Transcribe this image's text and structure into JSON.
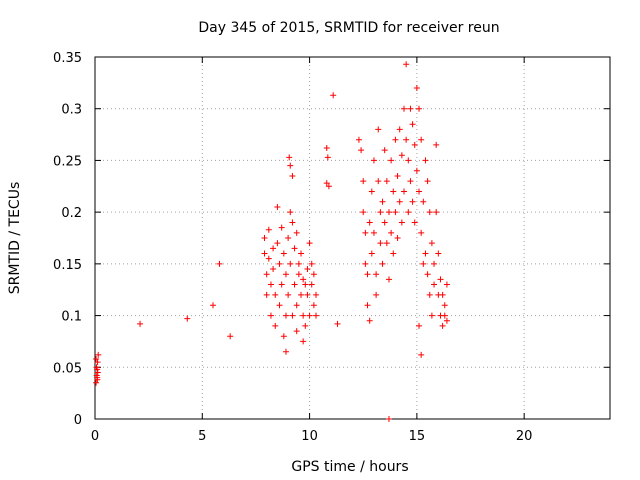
{
  "chart_data": {
    "type": "scatter",
    "title": "Day 345 of 2015, SRMTID for receiver reun",
    "xlabel": "GPS time / hours",
    "ylabel": "SRMTID / TECUs",
    "xlim": [
      0,
      24
    ],
    "ylim": [
      0,
      0.35
    ],
    "xticks": [
      0,
      5,
      10,
      15,
      20
    ],
    "xtick_labels": [
      "0",
      "5",
      "10",
      "15",
      "20"
    ],
    "yticks": [
      0,
      0.05,
      0.1,
      0.15,
      0.2,
      0.25,
      0.3,
      0.35
    ],
    "ytick_labels": [
      "0",
      "0.05",
      "0.1",
      "0.15",
      "0.2",
      "0.25",
      "0.3",
      "0.35"
    ],
    "grid": true,
    "marker": "+",
    "color": "#ff0000",
    "series": [
      {
        "name": "SRMTID",
        "points": [
          [
            0.05,
            0.035
          ],
          [
            0.08,
            0.042
          ],
          [
            0.1,
            0.048
          ],
          [
            0.12,
            0.055
          ],
          [
            0.15,
            0.062
          ],
          [
            0.05,
            0.058
          ],
          [
            0.1,
            0.04
          ],
          [
            0.13,
            0.045
          ],
          [
            0.07,
            0.05
          ],
          [
            0.11,
            0.038
          ],
          [
            2.1,
            0.092
          ],
          [
            4.3,
            0.097
          ],
          [
            5.5,
            0.11
          ],
          [
            5.8,
            0.15
          ],
          [
            6.3,
            0.08
          ],
          [
            7.9,
            0.175
          ],
          [
            7.9,
            0.16
          ],
          [
            8.0,
            0.14
          ],
          [
            8.0,
            0.12
          ],
          [
            8.1,
            0.183
          ],
          [
            8.1,
            0.155
          ],
          [
            8.2,
            0.13
          ],
          [
            8.2,
            0.1
          ],
          [
            8.3,
            0.165
          ],
          [
            8.3,
            0.145
          ],
          [
            8.4,
            0.12
          ],
          [
            8.4,
            0.09
          ],
          [
            8.5,
            0.205
          ],
          [
            8.5,
            0.17
          ],
          [
            8.6,
            0.15
          ],
          [
            8.6,
            0.11
          ],
          [
            8.7,
            0.185
          ],
          [
            8.7,
            0.13
          ],
          [
            8.8,
            0.16
          ],
          [
            8.8,
            0.08
          ],
          [
            8.9,
            0.14
          ],
          [
            8.9,
            0.065
          ],
          [
            9.0,
            0.175
          ],
          [
            9.0,
            0.12
          ],
          [
            9.1,
            0.2
          ],
          [
            9.1,
            0.15
          ],
          [
            9.1,
            0.245
          ],
          [
            9.2,
            0.19
          ],
          [
            9.2,
            0.235
          ],
          [
            9.2,
            0.1
          ],
          [
            9.3,
            0.165
          ],
          [
            9.3,
            0.13
          ],
          [
            9.4,
            0.18
          ],
          [
            9.4,
            0.11
          ],
          [
            9.5,
            0.15
          ],
          [
            9.5,
            0.14
          ],
          [
            9.6,
            0.16
          ],
          [
            9.6,
            0.12
          ],
          [
            9.7,
            0.135
          ],
          [
            9.7,
            0.1
          ],
          [
            9.8,
            0.13
          ],
          [
            9.8,
            0.09
          ],
          [
            9.9,
            0.145
          ],
          [
            9.9,
            0.12
          ],
          [
            10.0,
            0.17
          ],
          [
            10.0,
            0.1
          ],
          [
            10.1,
            0.15
          ],
          [
            10.1,
            0.13
          ],
          [
            10.2,
            0.14
          ],
          [
            10.2,
            0.11
          ],
          [
            10.3,
            0.12
          ],
          [
            10.3,
            0.1
          ],
          [
            9.4,
            0.085
          ],
          [
            8.9,
            0.1
          ],
          [
            9.05,
            0.253
          ],
          [
            9.7,
            0.075
          ],
          [
            10.8,
            0.262
          ],
          [
            10.85,
            0.253
          ],
          [
            10.9,
            0.225
          ],
          [
            10.8,
            0.228
          ],
          [
            11.1,
            0.313
          ],
          [
            11.3,
            0.092
          ],
          [
            12.3,
            0.27
          ],
          [
            12.4,
            0.26
          ],
          [
            12.5,
            0.23
          ],
          [
            12.5,
            0.2
          ],
          [
            12.6,
            0.18
          ],
          [
            12.6,
            0.15
          ],
          [
            12.7,
            0.14
          ],
          [
            12.7,
            0.11
          ],
          [
            12.8,
            0.095
          ],
          [
            12.8,
            0.19
          ],
          [
            12.9,
            0.22
          ],
          [
            12.9,
            0.16
          ],
          [
            13.0,
            0.25
          ],
          [
            13.0,
            0.18
          ],
          [
            13.1,
            0.14
          ],
          [
            13.1,
            0.12
          ],
          [
            13.2,
            0.28
          ],
          [
            13.2,
            0.23
          ],
          [
            13.3,
            0.2
          ],
          [
            13.3,
            0.17
          ],
          [
            13.4,
            0.15
          ],
          [
            13.4,
            0.21
          ],
          [
            13.5,
            0.26
          ],
          [
            13.5,
            0.19
          ],
          [
            13.6,
            0.17
          ],
          [
            13.6,
            0.23
          ],
          [
            13.7,
            0.2
          ],
          [
            13.7,
            0.135
          ],
          [
            13.8,
            0.25
          ],
          [
            13.8,
            0.18
          ],
          [
            13.9,
            0.22
          ],
          [
            13.9,
            0.16
          ],
          [
            14.0,
            0.27
          ],
          [
            14.0,
            0.2
          ],
          [
            14.1,
            0.235
          ],
          [
            14.1,
            0.175
          ],
          [
            14.2,
            0.21
          ],
          [
            14.2,
            0.28
          ],
          [
            14.3,
            0.255
          ],
          [
            14.3,
            0.19
          ],
          [
            14.4,
            0.3
          ],
          [
            14.4,
            0.22
          ],
          [
            14.5,
            0.343
          ],
          [
            14.5,
            0.27
          ],
          [
            14.6,
            0.25
          ],
          [
            14.6,
            0.2
          ],
          [
            14.7,
            0.3
          ],
          [
            14.7,
            0.23
          ],
          [
            14.8,
            0.285
          ],
          [
            14.8,
            0.21
          ],
          [
            14.9,
            0.265
          ],
          [
            14.9,
            0.19
          ],
          [
            15.0,
            0.32
          ],
          [
            15.0,
            0.24
          ],
          [
            15.1,
            0.3
          ],
          [
            15.1,
            0.22
          ],
          [
            15.2,
            0.27
          ],
          [
            15.2,
            0.18
          ],
          [
            15.3,
            0.21
          ],
          [
            15.3,
            0.15
          ],
          [
            15.4,
            0.25
          ],
          [
            15.4,
            0.16
          ],
          [
            15.5,
            0.23
          ],
          [
            15.5,
            0.14
          ],
          [
            15.6,
            0.2
          ],
          [
            15.6,
            0.12
          ],
          [
            15.7,
            0.17
          ],
          [
            15.7,
            0.1
          ],
          [
            15.8,
            0.15
          ],
          [
            15.8,
            0.13
          ],
          [
            15.9,
            0.265
          ],
          [
            15.9,
            0.2
          ],
          [
            16.0,
            0.12
          ],
          [
            16.0,
            0.16
          ],
          [
            16.1,
            0.135
          ],
          [
            16.1,
            0.1
          ],
          [
            16.2,
            0.12
          ],
          [
            16.2,
            0.09
          ],
          [
            16.3,
            0.11
          ],
          [
            16.3,
            0.1
          ],
          [
            16.4,
            0.095
          ],
          [
            16.4,
            0.13
          ],
          [
            15.2,
            0.062
          ],
          [
            15.1,
            0.09
          ],
          [
            13.7,
            0.0
          ]
        ]
      }
    ]
  }
}
